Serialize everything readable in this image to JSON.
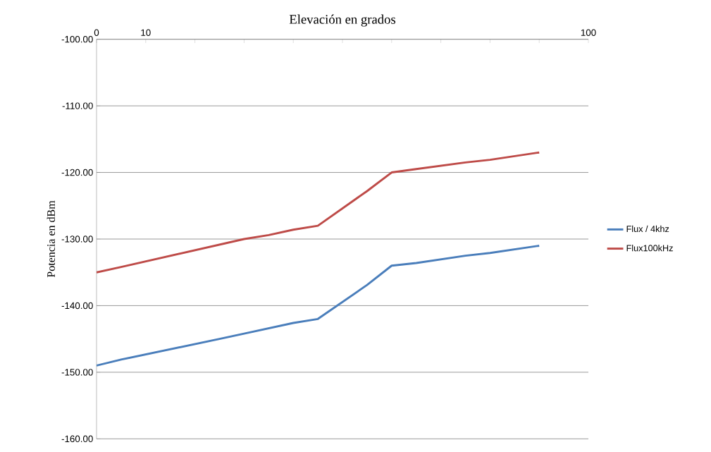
{
  "chart_data": {
    "type": "line",
    "title": "Elevación en grados",
    "ylabel": "Potencia en dBm",
    "xlim": [
      0,
      100
    ],
    "xticks": [
      0,
      10,
      {
        "value": 20,
        "label": null
      },
      {
        "value": 30,
        "label": null
      },
      {
        "value": 40,
        "label": null
      },
      {
        "value": 50,
        "label": null
      },
      {
        "value": 60,
        "label": null
      },
      {
        "value": 70,
        "label": null
      },
      {
        "value": 80,
        "label": null
      },
      {
        "value": 90,
        "label": null
      },
      100
    ],
    "ylim": [
      -160,
      -100
    ],
    "yticks": [
      {
        "value": -160,
        "label": "-160.00"
      },
      {
        "value": -150,
        "label": "-150.00"
      },
      {
        "value": -140,
        "label": "-140.00"
      },
      {
        "value": -130,
        "label": "-130.00"
      },
      {
        "value": -120,
        "label": "-120.00"
      },
      {
        "value": -110,
        "label": "-110.00"
      },
      {
        "value": -100,
        "label": "-100.00"
      }
    ],
    "grid": "y",
    "legend": "right",
    "marker": "none",
    "line_style": "solid",
    "series": [
      {
        "name": "Flux / 4khz",
        "color": "#4a7ebb",
        "x": [
          0,
          5,
          25,
          30,
          40,
          45,
          55,
          60,
          65,
          75,
          80,
          90
        ],
        "values": [
          -149,
          -148.1,
          -145,
          -144.2,
          -142.6,
          -142,
          -136.9,
          -134,
          -133.6,
          -132.5,
          -132.1,
          -131
        ]
      },
      {
        "name": "Flux100kHz",
        "color": "#be4b48",
        "x": [
          0,
          5,
          30,
          35,
          40,
          45,
          55,
          60,
          65,
          75,
          80,
          90
        ],
        "values": [
          -135,
          -134.2,
          -130,
          -129.4,
          -128.6,
          -128,
          -122.8,
          -120,
          -119.5,
          -118.5,
          -118.1,
          -117
        ]
      }
    ]
  }
}
